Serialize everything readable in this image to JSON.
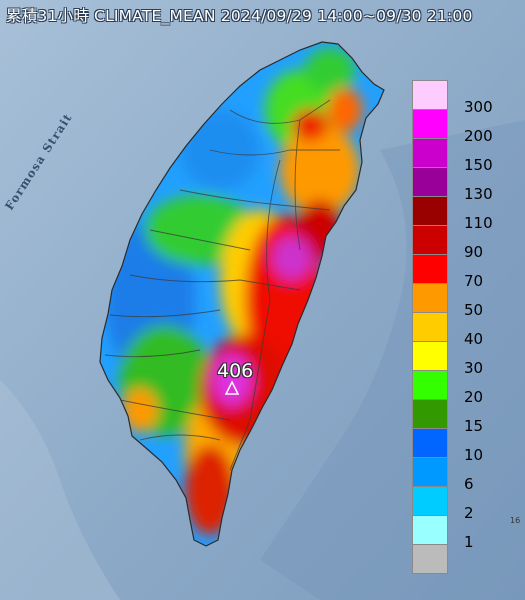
{
  "title": "累積31小時 CLIMATE_MEAN 2024/09/29 14:00~09/30 21:00",
  "sea_label": "Formosa Strait",
  "max_value_label": "406",
  "corner_label": "16",
  "legend": [
    {
      "label": "300",
      "color": "#ffccff"
    },
    {
      "label": "200",
      "color": "#ff00ff"
    },
    {
      "label": "150",
      "color": "#cc00cc"
    },
    {
      "label": "130",
      "color": "#990099"
    },
    {
      "label": "110",
      "color": "#990000"
    },
    {
      "label": "90",
      "color": "#cc0000"
    },
    {
      "label": "70",
      "color": "#ff0000"
    },
    {
      "label": "50",
      "color": "#ff9900"
    },
    {
      "label": "40",
      "color": "#ffcc00"
    },
    {
      "label": "30",
      "color": "#ffff00"
    },
    {
      "label": "20",
      "color": "#33ff00"
    },
    {
      "label": "15",
      "color": "#339900"
    },
    {
      "label": "10",
      "color": "#0066ff"
    },
    {
      "label": "6",
      "color": "#0099ff"
    },
    {
      "label": "2",
      "color": "#00ccff"
    },
    {
      "label": "1",
      "color": "#99ffff"
    },
    {
      "label": "",
      "color": "#bbbbbb"
    }
  ]
}
